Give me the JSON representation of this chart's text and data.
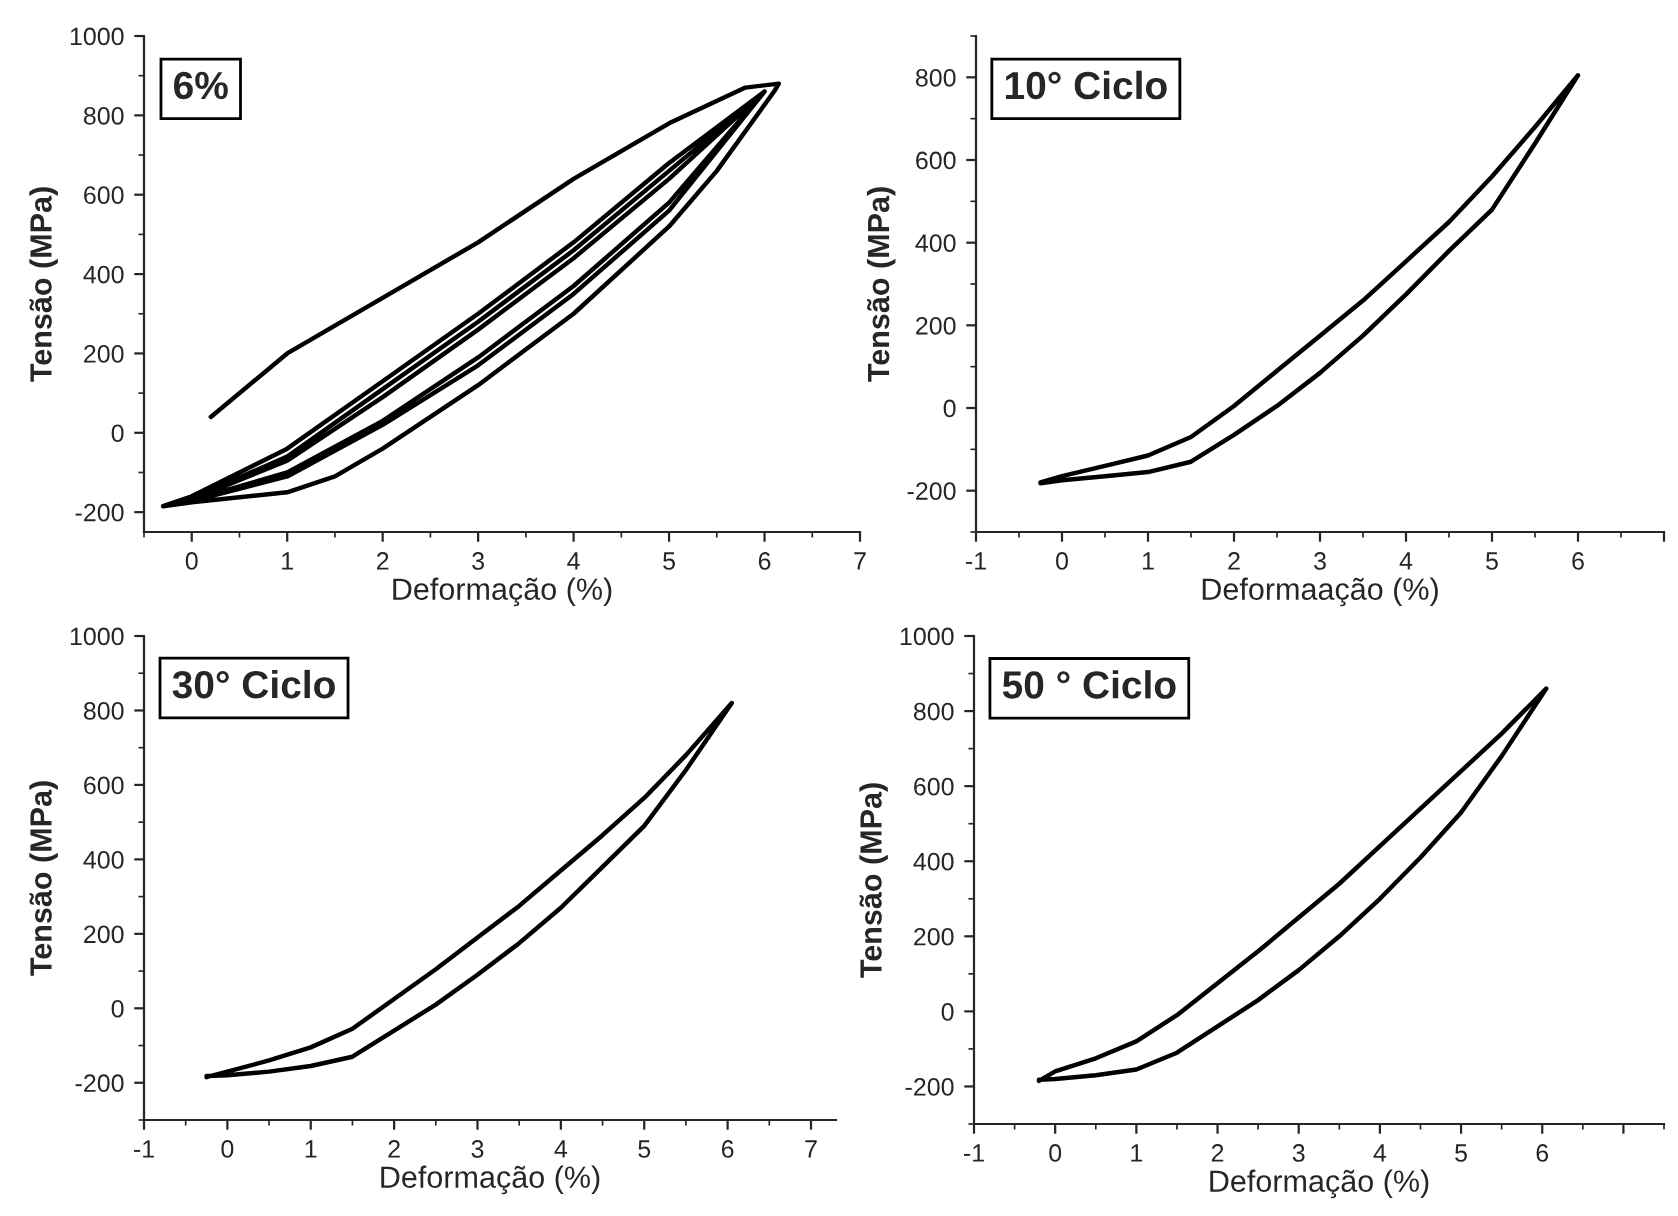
{
  "chart_data": [
    {
      "type": "line",
      "xlabel": "Deformação (%)",
      "ylabel": "Tensão (MPa)",
      "annotations": [
        "6%"
      ],
      "xlim": [
        -0.5,
        7
      ],
      "xticks": [
        0,
        1,
        2,
        3,
        4,
        5,
        6,
        7
      ],
      "ylim": [
        -250,
        1000
      ],
      "yticks": [
        -200,
        0,
        200,
        400,
        600,
        800,
        1000
      ],
      "grid": false,
      "legend": false,
      "series": [
        {
          "color": "#000000",
          "x": [
            0.2,
            1,
            2,
            3,
            4,
            5,
            5.8,
            6.15,
            6.1,
            5.5,
            5,
            4,
            3,
            2,
            1.5,
            1,
            0,
            -0.3,
            0,
            1,
            2,
            3,
            4,
            5,
            6,
            5,
            4,
            3,
            2,
            1,
            0,
            -0.3,
            0,
            1,
            2,
            3,
            4,
            5,
            6,
            5,
            4,
            3,
            2,
            1,
            0,
            -0.3,
            0,
            1,
            2,
            3,
            4,
            5,
            6
          ],
          "values": [
            40,
            200,
            340,
            480,
            640,
            780,
            870,
            880,
            860,
            660,
            520,
            300,
            120,
            -40,
            -110,
            -150,
            -175,
            -185,
            -160,
            -40,
            130,
            300,
            480,
            680,
            860,
            580,
            370,
            190,
            30,
            -100,
            -170,
            -185,
            -165,
            -60,
            110,
            280,
            460,
            660,
            860,
            560,
            350,
            170,
            20,
            -110,
            -172,
            -185,
            -168,
            -70,
            90,
            260,
            440,
            640,
            860
          ]
        }
      ]
    },
    {
      "type": "line",
      "xlabel": "Deformaação (%)",
      "ylabel": "Tensão (MPa)",
      "annotations": [
        "10° Ciclo"
      ],
      "xlim": [
        -1,
        7
      ],
      "xticks": [
        -1,
        0,
        1,
        2,
        3,
        4,
        5,
        6,
        {
          "value": 7,
          "label": null
        }
      ],
      "ylim": [
        -300,
        900
      ],
      "yticks": [
        -200,
        0,
        200,
        400,
        600,
        800
      ],
      "grid": false,
      "legend": false,
      "series": [
        {
          "color": "#000000",
          "x": [
            -0.25,
            0,
            0.5,
            1,
            1.5,
            2,
            2.5,
            3,
            3.5,
            4,
            4.5,
            5,
            5.5,
            6,
            5.5,
            5,
            4.5,
            4,
            3.5,
            3,
            2.5,
            2,
            1.5,
            1,
            0.5,
            0,
            -0.25
          ],
          "values": [
            -180,
            -165,
            -140,
            -115,
            -70,
            5,
            90,
            175,
            260,
            355,
            450,
            560,
            680,
            805,
            640,
            480,
            380,
            275,
            175,
            85,
            5,
            -65,
            -130,
            -155,
            -165,
            -175,
            -182
          ]
        }
      ]
    },
    {
      "type": "line",
      "xlabel": "Deformação (%)",
      "ylabel": "Tensão (MPa)",
      "annotations": [
        "30° Ciclo"
      ],
      "xlim": [
        -1,
        7.3
      ],
      "xticks": [
        -1,
        0,
        1,
        2,
        3,
        4,
        5,
        6,
        7
      ],
      "ylim": [
        -300,
        1000
      ],
      "yticks": [
        -200,
        0,
        200,
        400,
        600,
        800,
        1000
      ],
      "grid": false,
      "legend": false,
      "series": [
        {
          "color": "#000000",
          "x": [
            -0.25,
            0,
            0.5,
            1,
            1.5,
            2,
            2.5,
            3,
            3.5,
            4,
            4.5,
            5,
            5.5,
            6.05,
            5.5,
            5,
            4.5,
            4,
            3.5,
            3,
            2.5,
            2,
            1.5,
            1,
            0.5,
            0,
            -0.25
          ],
          "values": [
            -185,
            -170,
            -140,
            -105,
            -55,
            25,
            105,
            190,
            275,
            370,
            465,
            565,
            680,
            820,
            640,
            490,
            380,
            270,
            175,
            90,
            10,
            -60,
            -130,
            -155,
            -170,
            -180,
            -182
          ]
        }
      ]
    },
    {
      "type": "line",
      "xlabel": "Deformação (%)",
      "ylabel": "Tensão (MPa)",
      "annotations": [
        "50 ° Ciclo"
      ],
      "xlim": [
        -1,
        7.5
      ],
      "xticks": [
        -1,
        0,
        1,
        2,
        3,
        4,
        5,
        6,
        {
          "value": 7,
          "label": null
        }
      ],
      "ylim": [
        -300,
        1000
      ],
      "yticks": [
        -200,
        0,
        200,
        400,
        600,
        800,
        1000
      ],
      "grid": false,
      "legend": false,
      "series": [
        {
          "color": "#000000",
          "x": [
            -0.2,
            0,
            0.5,
            1,
            1.5,
            2,
            2.5,
            3,
            3.5,
            4,
            4.5,
            5,
            5.5,
            6.05,
            5.5,
            5,
            4.5,
            4,
            3.5,
            3,
            2.5,
            2,
            1.5,
            1,
            0.5,
            0,
            -0.2
          ],
          "values": [
            -185,
            -160,
            -125,
            -80,
            -10,
            75,
            160,
            250,
            340,
            440,
            540,
            640,
            740,
            860,
            680,
            530,
            410,
            300,
            200,
            110,
            30,
            -40,
            -110,
            -155,
            -170,
            -180,
            -182
          ]
        }
      ]
    }
  ]
}
